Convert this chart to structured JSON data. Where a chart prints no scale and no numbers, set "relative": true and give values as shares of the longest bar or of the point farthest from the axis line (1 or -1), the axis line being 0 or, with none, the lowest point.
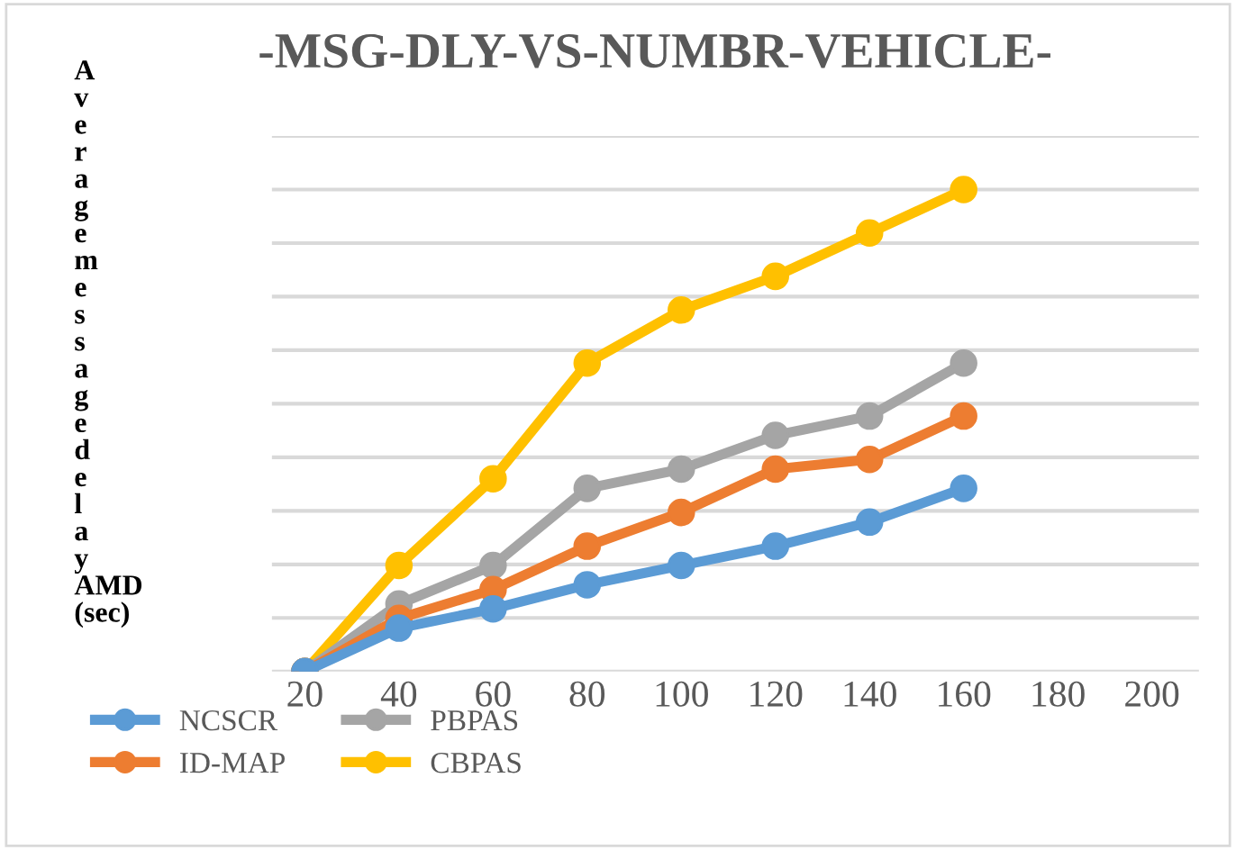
{
  "chart_data": {
    "type": "line",
    "title": "-MSG-DLY-VS-NUMBR-VEHICLE-",
    "ylabel": "Averagemessagedelay AMD (sec)",
    "x": [
      20,
      40,
      60,
      80,
      100,
      120,
      140,
      160
    ],
    "xlim": [
      13,
      210
    ],
    "xticks": [
      20,
      40,
      60,
      80,
      100,
      120,
      140,
      160,
      180,
      200
    ],
    "relative": true,
    "grid": "y",
    "legend": "bottom left",
    "marker": "circle",
    "line_style": "solid",
    "series": [
      {
        "name": "NCSCR",
        "color": "#5b9bd5",
        "values": [
          0,
          0.09,
          0.13,
          0.18,
          0.22,
          0.26,
          0.31,
          0.38
        ]
      },
      {
        "name": "ID-MAP",
        "color": "#ed7d31",
        "values": [
          0,
          0.11,
          0.17,
          0.26,
          0.33,
          0.42,
          0.44,
          0.53
        ]
      },
      {
        "name": "PBPAS",
        "color": "#a5a5a5",
        "values": [
          0,
          0.14,
          0.22,
          0.38,
          0.42,
          0.49,
          0.53,
          0.64
        ]
      },
      {
        "name": "CBPAS",
        "color": "#ffc000",
        "values": [
          0,
          0.22,
          0.4,
          0.64,
          0.75,
          0.82,
          0.91,
          1
        ]
      }
    ]
  }
}
